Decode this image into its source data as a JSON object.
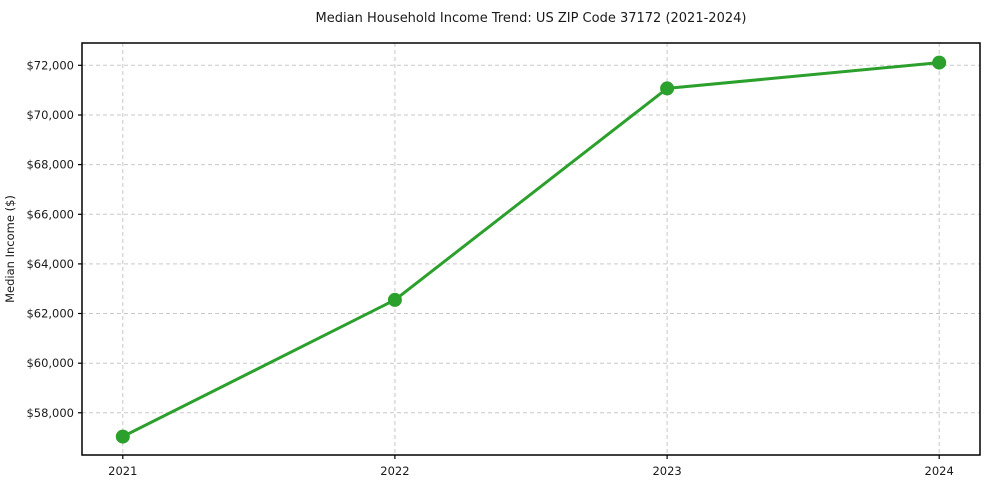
{
  "figure": {
    "background": "#ffffff"
  },
  "chart_data": {
    "type": "line",
    "title": "Median Household Income Trend: US ZIP Code 37172 (2021-2024)",
    "xlabel": "",
    "ylabel": "Median Income ($)",
    "x": [
      2021,
      2022,
      2023,
      2024
    ],
    "series": [
      {
        "name": "Median household income",
        "values": [
          57040,
          62550,
          71070,
          72110
        ],
        "color": "#2ca02c",
        "marker": "circle"
      }
    ],
    "xticks": [
      2021,
      2022,
      2023,
      2024
    ],
    "xtick_labels": [
      "2021",
      "2022",
      "2023",
      "2024"
    ],
    "yticks": [
      58000,
      60000,
      62000,
      64000,
      66000,
      68000,
      70000,
      72000
    ],
    "ytick_labels": [
      "$58,000",
      "$60,000",
      "$62,000",
      "$64,000",
      "$66,000",
      "$68,000",
      "$70,000",
      "$72,000"
    ],
    "xlim": [
      2020.85,
      2024.15
    ],
    "ylim": [
      56300,
      72900
    ],
    "grid": "dashed",
    "grid_color": "#c9c9c9",
    "spine_color": "#000000",
    "tick_color": "#000000",
    "text_color": "#1a1a1a",
    "legend": "none",
    "line_width": 3,
    "marker_radius": 7
  }
}
